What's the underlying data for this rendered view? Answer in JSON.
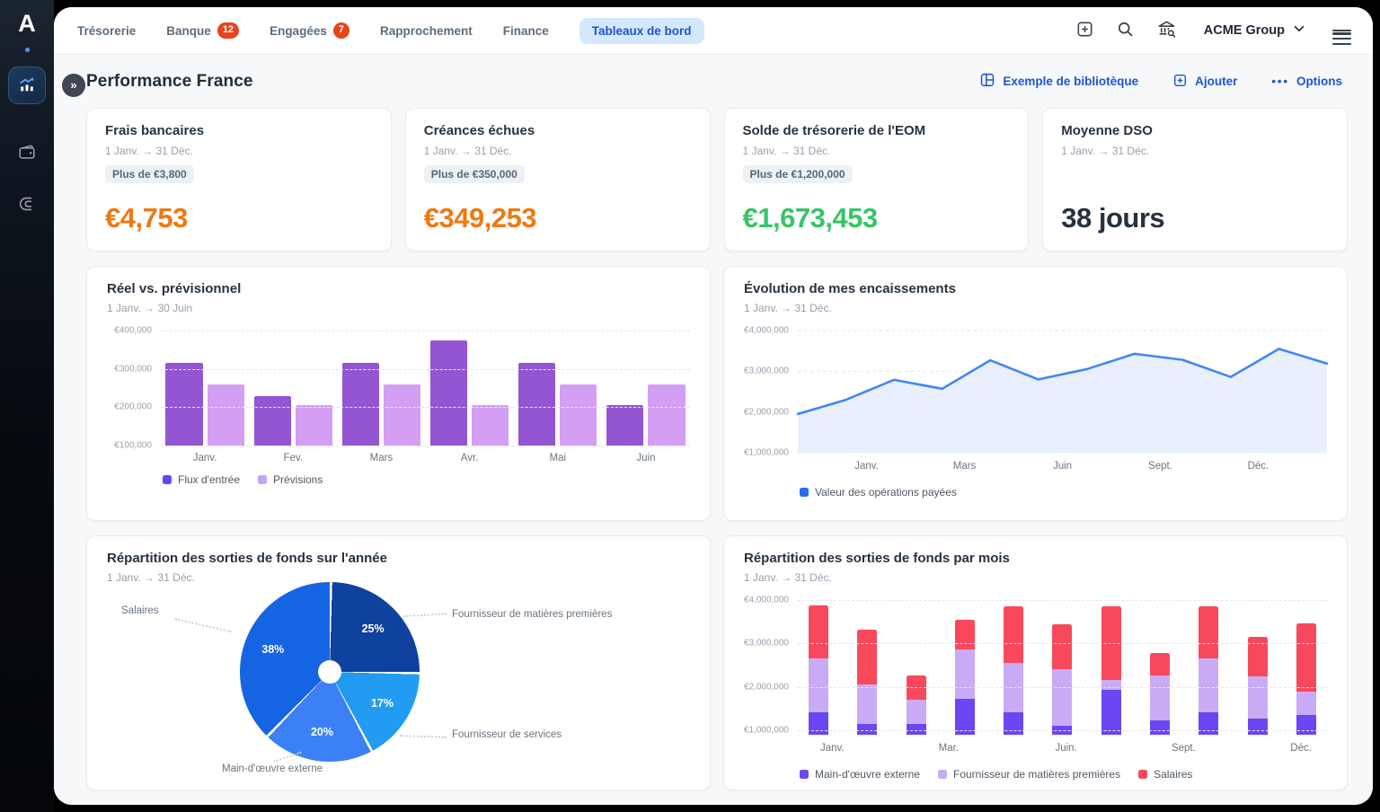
{
  "colors": {
    "accent_blue": "#1d55d5",
    "tab_active_bg": "#d3e8fb",
    "tab_active_text": "#1b55d6",
    "badge_red": "#e8431c",
    "kpi_orange": "#ee7912",
    "kpi_green": "#38c467",
    "kpi_dark": "#27323f",
    "content_bg": "#f6f8fa"
  },
  "sidebar": {
    "logo": "A",
    "items": [
      {
        "name": "dashboards",
        "icon": "bar-chart-trend-icon",
        "active": true
      },
      {
        "name": "wallet",
        "icon": "wallet-icon",
        "active": false
      },
      {
        "name": "magnet",
        "icon": "magnet-icon",
        "active": false
      }
    ]
  },
  "topbar": {
    "tabs": [
      {
        "label": "Trésorerie"
      },
      {
        "label": "Banque",
        "badge": "12"
      },
      {
        "label": "Engagées",
        "badge": "7"
      },
      {
        "label": "Rapprochement"
      },
      {
        "label": "Finance"
      },
      {
        "label": "Tableaux de bord",
        "active": true
      }
    ],
    "company": "ACME Group"
  },
  "page": {
    "title": "Performance France",
    "actions": {
      "library": "Exemple de bibliotèque",
      "add": "Ajouter",
      "options": "Options"
    }
  },
  "kpis": [
    {
      "title": "Frais bancaires",
      "period": "1 Janv. → 31 Déc.",
      "badge": "Plus de €3,800",
      "value": "€4,753",
      "color": "#ee7912"
    },
    {
      "title": "Créances échues",
      "period": "1 Janv. → 31 Déc.",
      "badge": "Plus de €350,000",
      "value": "€349,253",
      "color": "#ee7912"
    },
    {
      "title": "Solde de trésorerie de l'EOM",
      "period": "1 Janv. → 31 Déc.",
      "badge": "Plus de €1,200,000",
      "value": "€1,673,453",
      "color": "#38c467"
    },
    {
      "title": "Moyenne DSO",
      "period": "1 Janv. → 31 Déc.",
      "badge": null,
      "value": "38 jours",
      "color": "#27323f"
    }
  ],
  "chart_data": [
    {
      "id": "reel-vs-previsionnel",
      "type": "bar",
      "title": "Réel vs. prévisionnel",
      "period": "1 Janv. → 30 Juin",
      "categories": [
        "Janv.",
        "Fev.",
        "Mars",
        "Avr.",
        "Mai",
        "Juin"
      ],
      "series": [
        {
          "name": "Flux d'entrée",
          "color": "#9355d2",
          "legend_color": "#5a4cf2",
          "values": [
            315000,
            230000,
            315000,
            375000,
            315000,
            205000
          ]
        },
        {
          "name": "Prévisions",
          "color": "#d49ef4",
          "legend_color": "#c5a3f6",
          "values": [
            260000,
            205000,
            260000,
            205000,
            260000,
            260000
          ]
        }
      ],
      "y_ticks": [
        "€400,000",
        "€300,000",
        "€200,000",
        "€100,000"
      ],
      "y_tick_values": [
        400000,
        300000,
        200000,
        100000
      ],
      "ylim": [
        100000,
        400000
      ],
      "grid": "dashed",
      "legend_position": "bottom-left"
    },
    {
      "id": "evolution-encaissements",
      "type": "area",
      "title": "Évolution de mes encaissements",
      "period": "1 Janv. → 31 Déc.",
      "series": [
        {
          "name": "Valeur des opérations payées",
          "color": "#4187f6",
          "fill": "#e9effc",
          "legend_color": "#2e6bf0",
          "values": [
            1950000,
            2300000,
            2790000,
            2570000,
            3270000,
            2800000,
            3050000,
            3430000,
            3280000,
            2860000,
            3550000,
            3190000
          ]
        }
      ],
      "x_ticks": [
        "Janv.",
        "Mars",
        "Juin",
        "Sept.",
        "Déc."
      ],
      "y_ticks": [
        "€4,000,000",
        "€3,000,000",
        "€2,000,000",
        "€1,000,000"
      ],
      "y_tick_values": [
        4000000,
        3000000,
        2000000,
        1000000
      ],
      "ylim": [
        1000000,
        4000000
      ],
      "grid": "dashed",
      "legend_position": "bottom-left"
    },
    {
      "id": "repartition-sorties-annee",
      "type": "pie",
      "title": "Répartition des sorties de fonds sur l'année",
      "period": "1 Janv. → 31 Déc.",
      "slices": [
        {
          "label": "Fournisseur de matières premières",
          "pct": 25,
          "color": "#0f419e"
        },
        {
          "label": "Fournisseur de services",
          "pct": 17,
          "color": "#229cf2"
        },
        {
          "label": "Main-d'œuvre externe",
          "pct": 20,
          "color": "#3b80f5"
        },
        {
          "label": "Salaires",
          "pct": 38,
          "color": "#1565e2"
        }
      ],
      "start_angle": "top",
      "clockwise": true
    },
    {
      "id": "repartition-sorties-mois",
      "type": "stacked-bar",
      "title": "Répartition des sorties de fonds par mois",
      "period": "1 Janv. → 31 Déc.",
      "series": [
        {
          "name": "Main-d'œuvre externe",
          "color": "#6b46f2",
          "values": [
            1420000,
            1140000,
            1150000,
            1730000,
            1410000,
            1100000,
            1940000,
            1240000,
            1420000,
            1280000,
            1350000
          ]
        },
        {
          "name": "Fournisseur de matières premières",
          "color": "#c9abf5",
          "values": [
            1230000,
            910000,
            550000,
            1130000,
            1140000,
            1300000,
            230000,
            1030000,
            1230000,
            970000,
            550000
          ]
        },
        {
          "name": "Salaires",
          "color": "#f8495c",
          "values": [
            1220000,
            1270000,
            560000,
            680000,
            1310000,
            1040000,
            1690000,
            510000,
            1210000,
            900000,
            1560000
          ]
        }
      ],
      "x_ticks": [
        "Janv.",
        "Mar.",
        "Juin.",
        "Sept.",
        "Déc."
      ],
      "y_ticks": [
        "€4,000,000",
        "€3,000,000",
        "€2,000,000",
        "€1,000,000"
      ],
      "y_tick_values": [
        4000000,
        3000000,
        2000000,
        1000000
      ],
      "ylim": [
        900000,
        4000000
      ],
      "grid": "dashed",
      "legend_position": "bottom-left"
    }
  ]
}
